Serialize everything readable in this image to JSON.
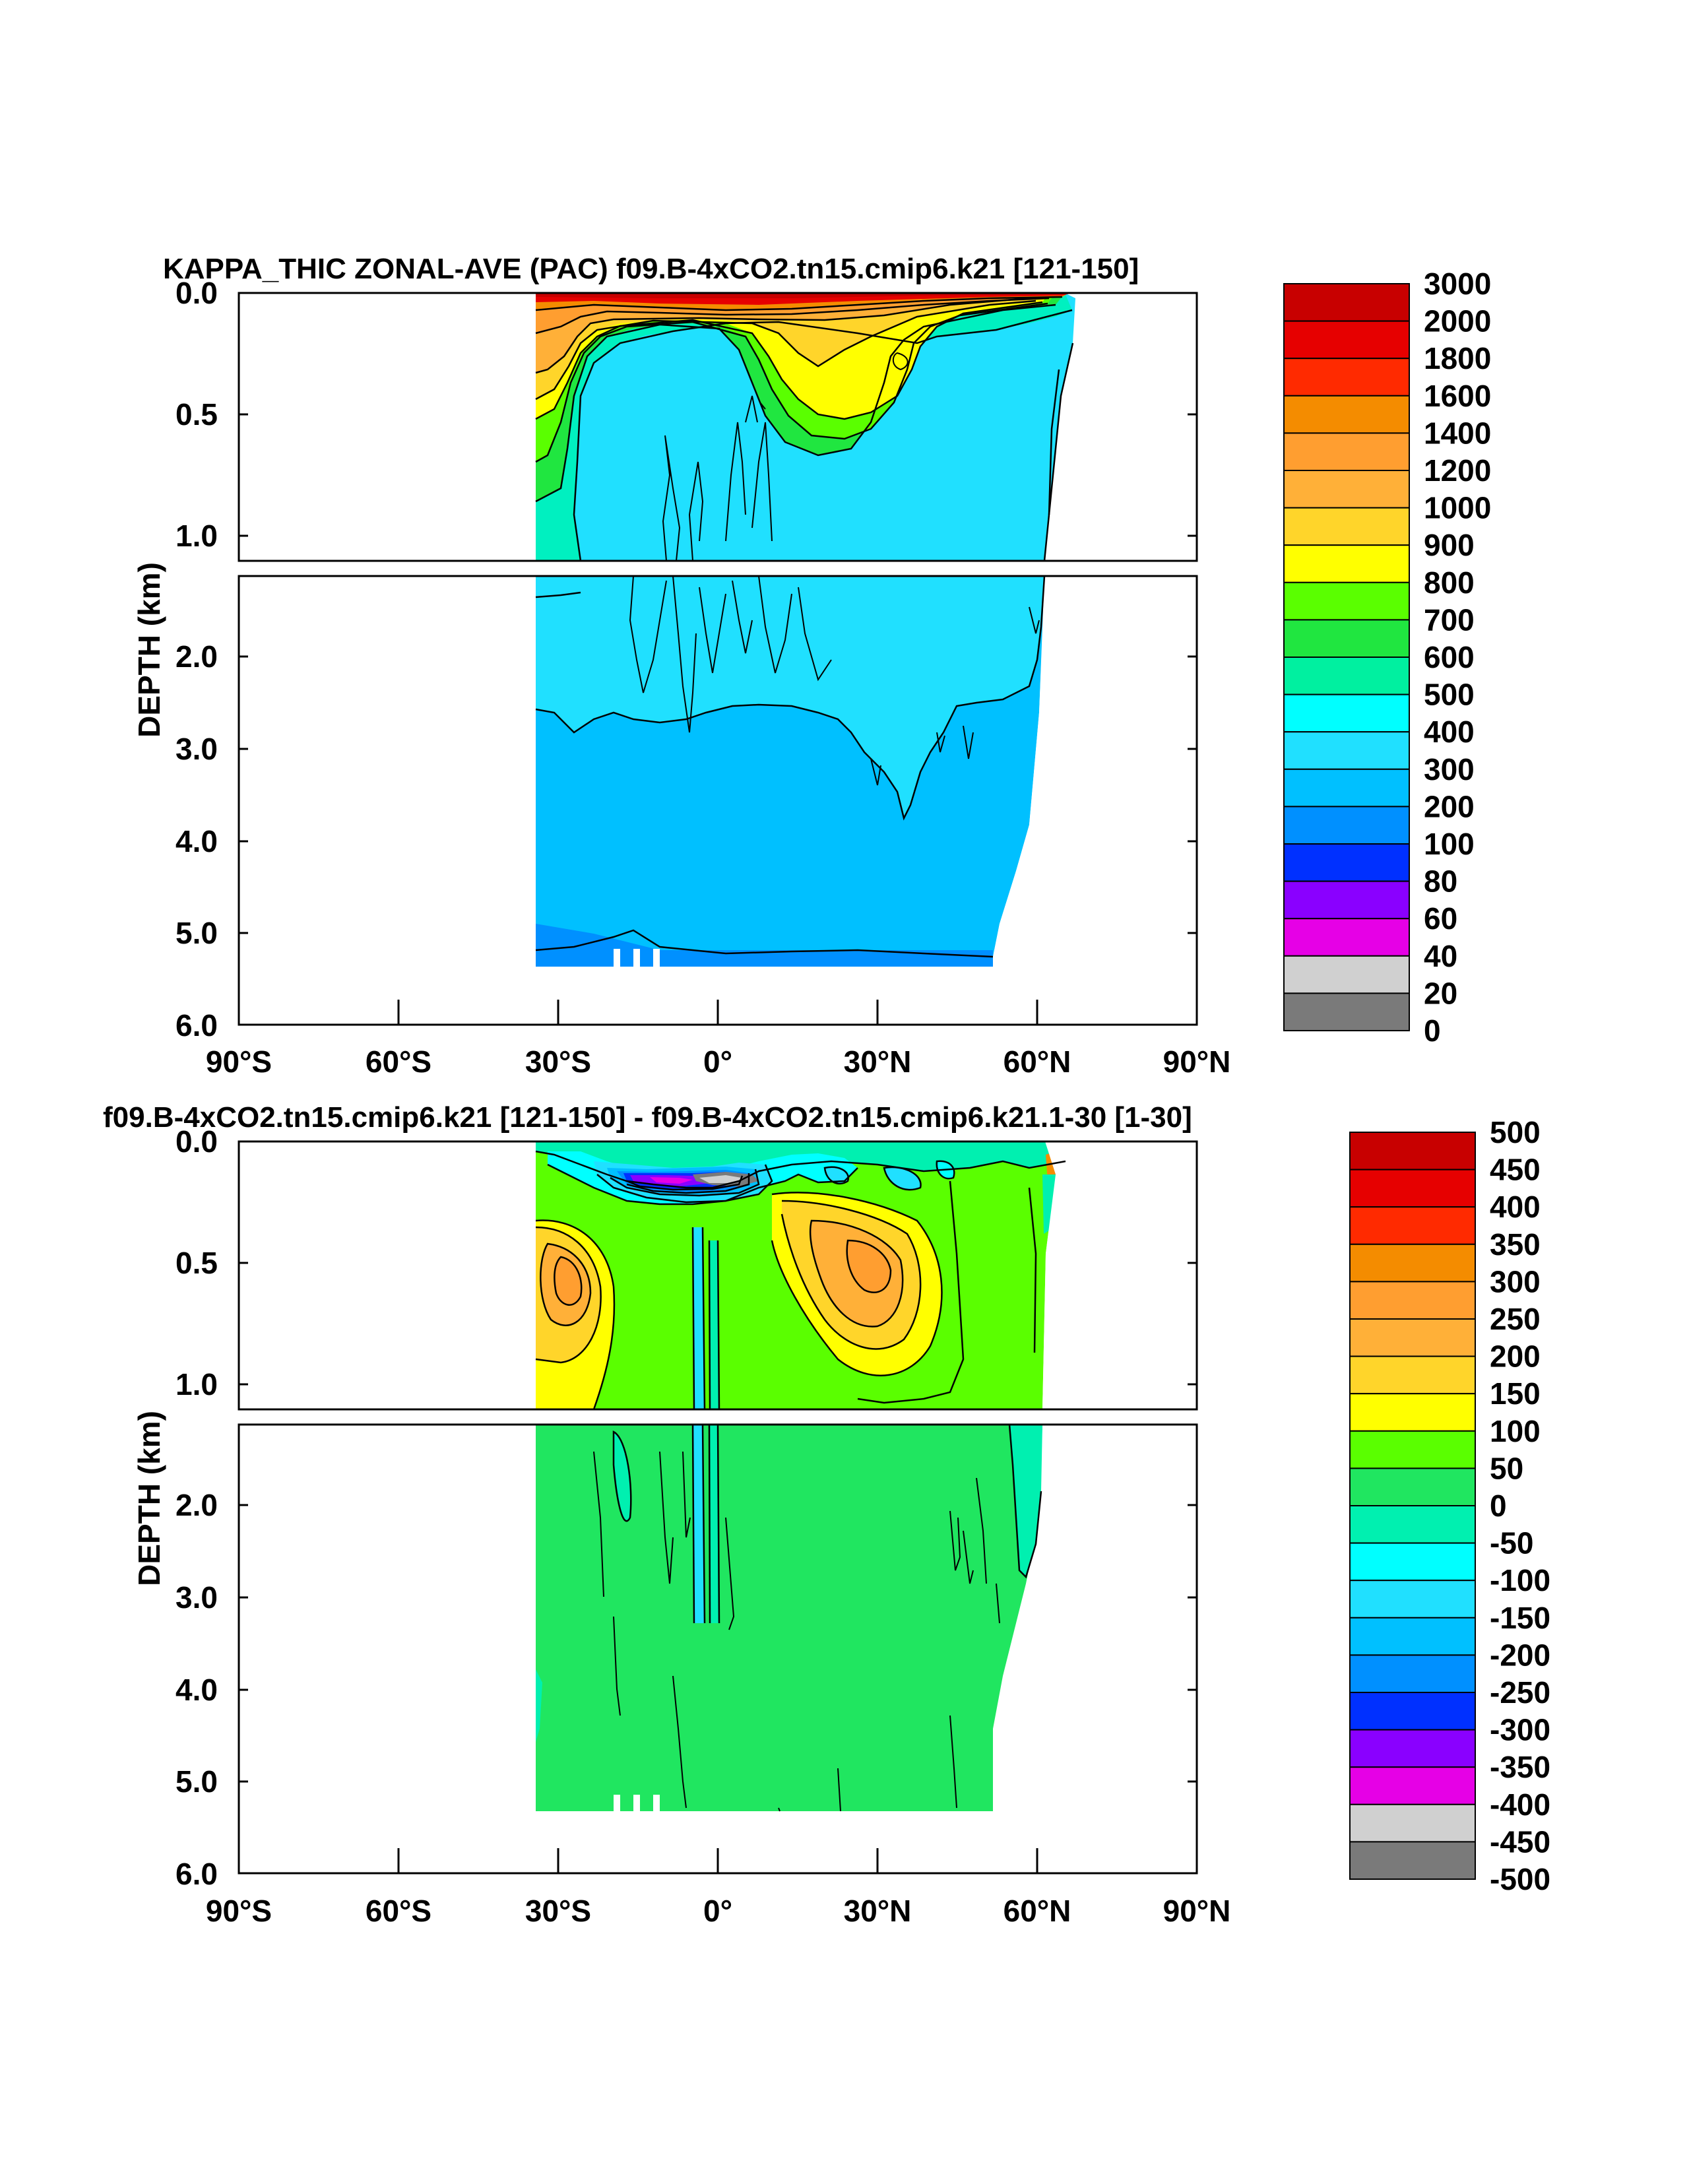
{
  "chart_data": [
    {
      "type": "heatmap",
      "plot_kind": "zonal-average depth-latitude contour",
      "title": "KAPPA_THIC ZONAL-AVE (PAC) f09.B-4xCO2.tn15.cmip6.k21 [121-150]",
      "xlabel": "",
      "ylabel": "DEPTH (km)",
      "x_ticks": [
        "90°S",
        "60°S",
        "30°S",
        "0°",
        "30°N",
        "60°N",
        "90°N"
      ],
      "xlim": [
        -90,
        90
      ],
      "y_ticks_upper": [
        "0.0",
        "0.5",
        "1.0"
      ],
      "y_ticks_lower": [
        "2.0",
        "3.0",
        "4.0",
        "5.0",
        "6.0"
      ],
      "ylim": [
        0,
        6
      ],
      "colorbar_labels": [
        "3000",
        "2000",
        "1800",
        "1600",
        "1400",
        "1200",
        "1000",
        "900",
        "800",
        "700",
        "600",
        "500",
        "400",
        "300",
        "200",
        "100",
        "80",
        "60",
        "40",
        "20",
        "0"
      ],
      "colorbar_colors": [
        "#c80000",
        "#e60000",
        "#ff2a00",
        "#f48c00",
        "#ff9e30",
        "#ffb038",
        "#ffd52a",
        "#ffff00",
        "#5aff00",
        "#20e640",
        "#00f0a0",
        "#00ffff",
        "#20e0ff",
        "#00c0ff",
        "#0090ff",
        "#0030ff",
        "#8a00ff",
        "#e600e6",
        "#d0d0d0",
        "#7a7a7a"
      ],
      "ocean_extent": {
        "south_lat": -34,
        "north_lat_surface": 66,
        "max_depth_km": 5.35
      }
    },
    {
      "type": "heatmap",
      "plot_kind": "zonal-average depth-latitude contour (difference)",
      "title": "f09.B-4xCO2.tn15.cmip6.k21 [121-150] - f09.B-4xCO2.tn15.cmip6.k21.1-30 [1-30]",
      "xlabel": "",
      "ylabel": "DEPTH (km)",
      "x_ticks": [
        "90°S",
        "60°S",
        "30°S",
        "0°",
        "30°N",
        "60°N",
        "90°N"
      ],
      "xlim": [
        -90,
        90
      ],
      "y_ticks_upper": [
        "0.0",
        "0.5",
        "1.0"
      ],
      "y_ticks_lower": [
        "2.0",
        "3.0",
        "4.0",
        "5.0",
        "6.0"
      ],
      "ylim": [
        0,
        6
      ],
      "colorbar_labels": [
        "500",
        "450",
        "400",
        "350",
        "300",
        "250",
        "200",
        "150",
        "100",
        "50",
        "0",
        "-50",
        "-100",
        "-150",
        "-200",
        "-250",
        "-300",
        "-350",
        "-400",
        "-450",
        "-500"
      ],
      "colorbar_colors": [
        "#c80000",
        "#e60000",
        "#ff2a00",
        "#f48c00",
        "#ff9e30",
        "#ffb038",
        "#ffd52a",
        "#ffff00",
        "#5aff00",
        "#20e660",
        "#00f0b0",
        "#00ffff",
        "#20e0ff",
        "#00c0ff",
        "#0090ff",
        "#0030ff",
        "#8a00ff",
        "#e600e6",
        "#d0d0d0",
        "#7a7a7a"
      ],
      "ocean_extent": {
        "south_lat": -34,
        "north_lat_surface": 66,
        "max_depth_km": 5.35
      }
    }
  ]
}
